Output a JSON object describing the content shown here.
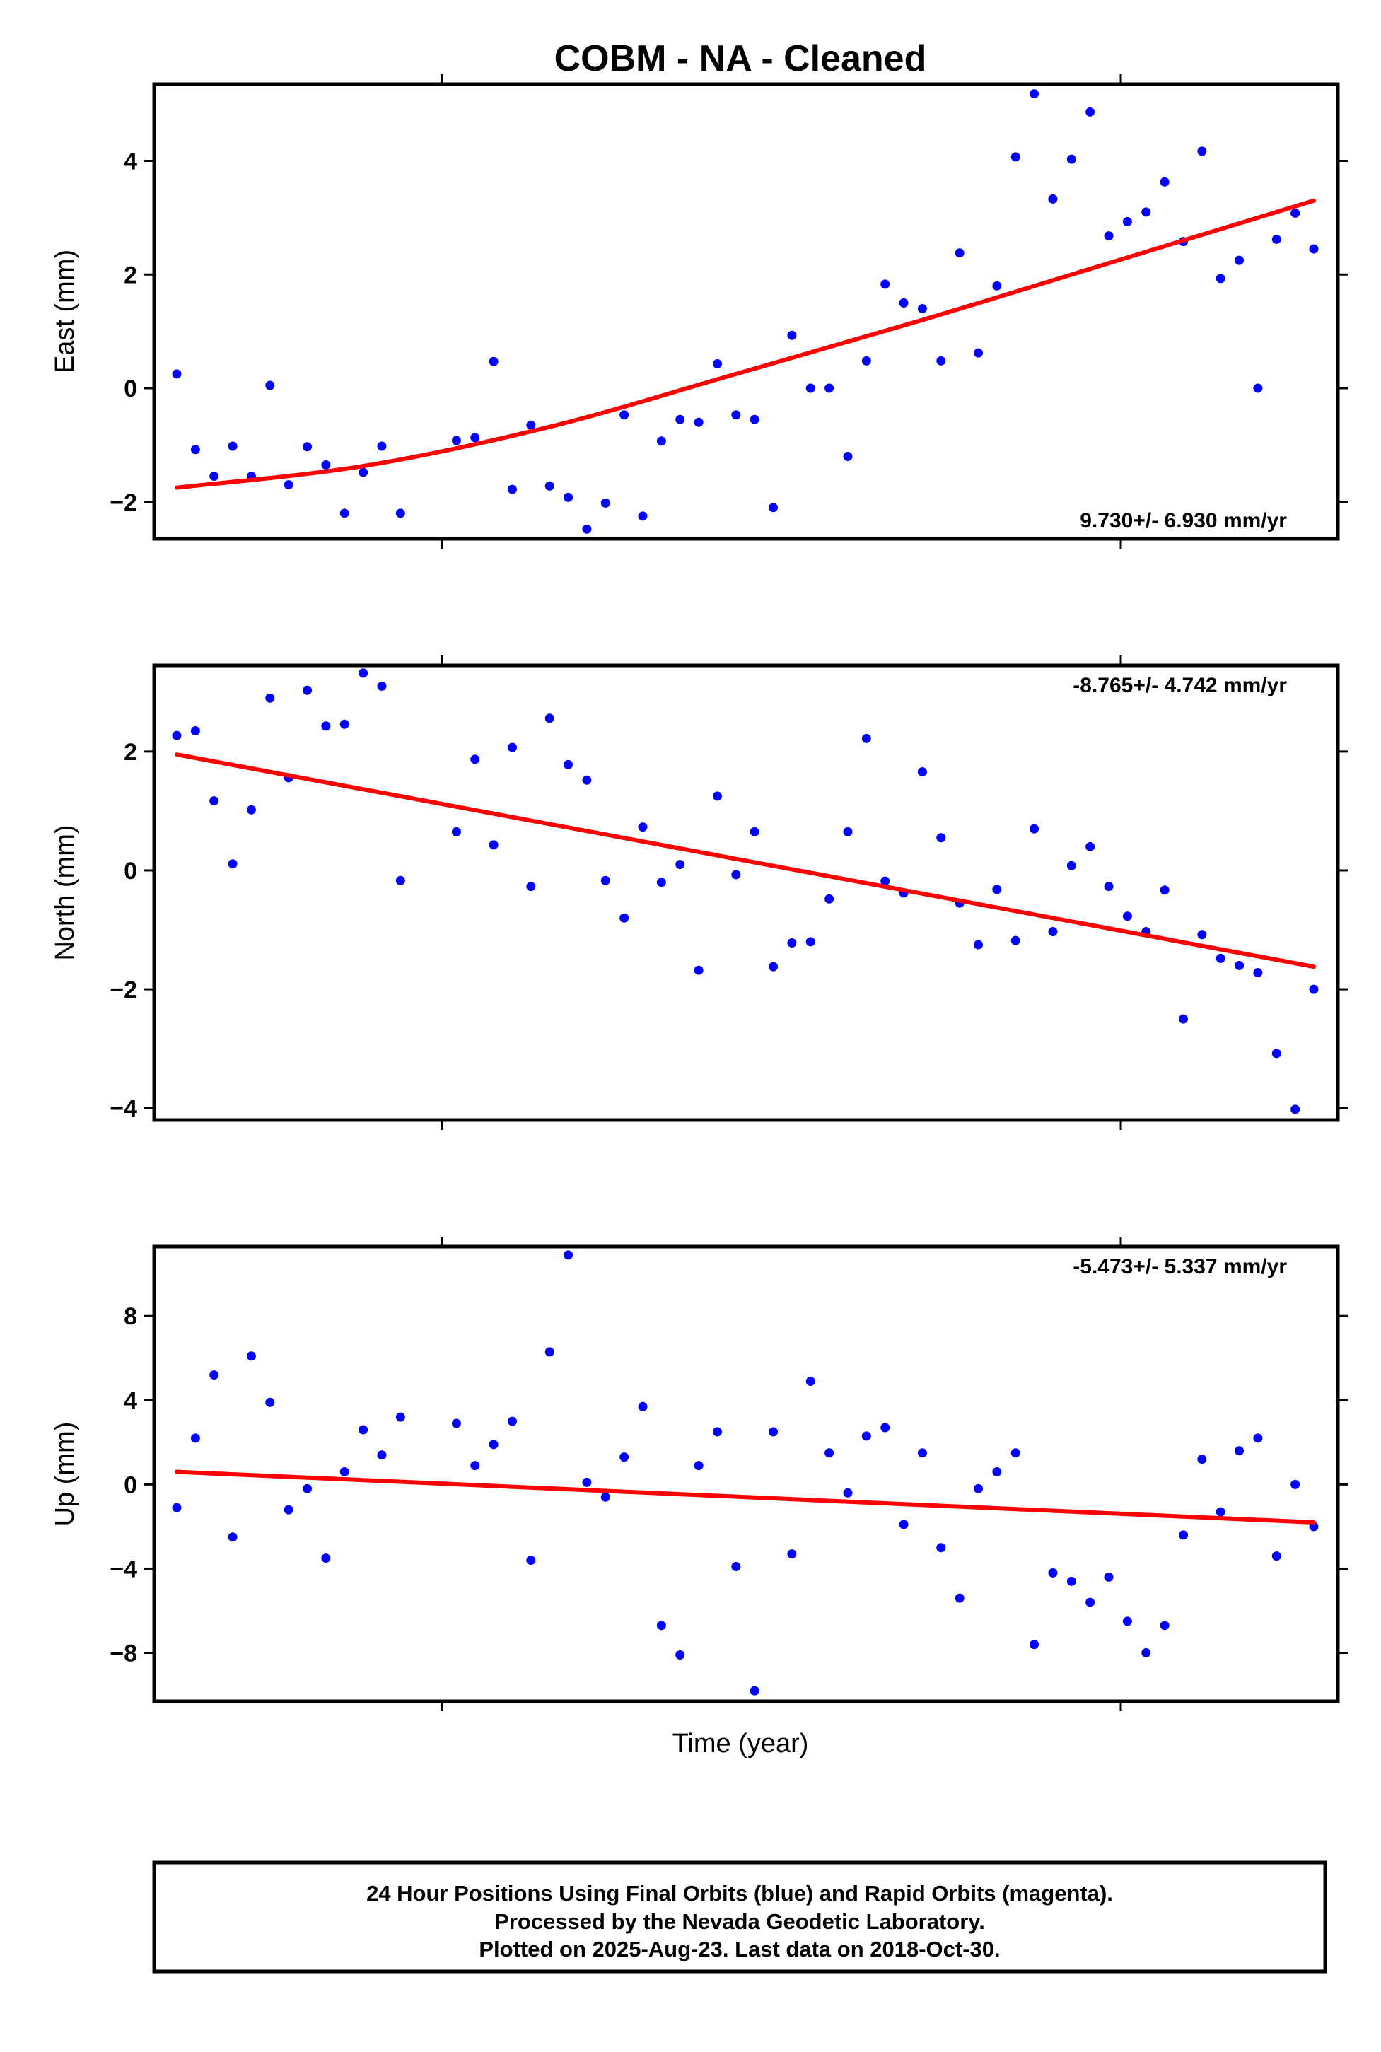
{
  "title": "COBM  - NA - Cleaned",
  "xlabel": "Time (year)",
  "footer": {
    "line1": "24 Hour Positions Using Final Orbits (blue) and Rapid Orbits (magenta).",
    "line2": "Processed by the Nevada Geodetic Laboratory.",
    "line3": "Plotted on 2025-Aug-23. Last data on 2018-Oct-30."
  },
  "colors": {
    "points": "#0000ff",
    "trend": "#ff0000",
    "frame": "#000000"
  },
  "chart_data": [
    {
      "type": "scatter",
      "name": "east",
      "ylabel": "East (mm)",
      "rate_text": "9.730+/- 6.930 mm/yr",
      "rate_position": "bottom-right",
      "ylim": [
        -2.65,
        5.35
      ],
      "yticks": [
        -2,
        0,
        2,
        4
      ],
      "ytick_labels": [
        "−2",
        "0",
        "2",
        "4"
      ],
      "xlim": [
        0,
        62
      ],
      "points": [
        [
          0.5,
          0.25
        ],
        [
          1.5,
          -1.08
        ],
        [
          2.5,
          -1.55
        ],
        [
          3.5,
          -1.02
        ],
        [
          4.5,
          -1.55
        ],
        [
          5.5,
          0.05
        ],
        [
          6.5,
          -1.7
        ],
        [
          7.5,
          -1.03
        ],
        [
          8.5,
          -1.35
        ],
        [
          9.5,
          -2.2
        ],
        [
          10.5,
          -1.48
        ],
        [
          11.5,
          -1.02
        ],
        [
          12.5,
          -2.2
        ],
        [
          15.5,
          -0.92
        ],
        [
          16.5,
          -0.87
        ],
        [
          17.5,
          0.47
        ],
        [
          18.5,
          -1.78
        ],
        [
          19.5,
          -0.65
        ],
        [
          20.5,
          -1.72
        ],
        [
          21.5,
          -1.92
        ],
        [
          22.5,
          -2.48
        ],
        [
          23.5,
          -2.02
        ],
        [
          24.5,
          -0.47
        ],
        [
          25.5,
          -2.25
        ],
        [
          26.5,
          -0.93
        ],
        [
          27.5,
          -0.55
        ],
        [
          28.5,
          -0.6
        ],
        [
          29.5,
          0.43
        ],
        [
          30.5,
          -0.47
        ],
        [
          31.5,
          -0.55
        ],
        [
          32.5,
          -2.1
        ],
        [
          33.5,
          0.93
        ],
        [
          34.5,
          0.0
        ],
        [
          35.5,
          0.0
        ],
        [
          36.5,
          -1.2
        ],
        [
          37.5,
          0.48
        ],
        [
          38.5,
          1.83
        ],
        [
          39.5,
          1.5
        ],
        [
          40.5,
          1.4
        ],
        [
          41.5,
          0.48
        ],
        [
          42.5,
          2.38
        ],
        [
          43.5,
          0.62
        ],
        [
          44.5,
          1.8
        ],
        [
          45.5,
          4.07
        ],
        [
          46.5,
          5.18
        ],
        [
          47.5,
          3.33
        ],
        [
          48.5,
          4.03
        ],
        [
          49.5,
          4.86
        ],
        [
          50.5,
          2.68
        ],
        [
          51.5,
          2.93
        ],
        [
          52.5,
          3.1
        ],
        [
          53.5,
          3.63
        ],
        [
          54.5,
          2.58
        ],
        [
          55.5,
          4.17
        ],
        [
          56.5,
          1.93
        ],
        [
          57.5,
          2.25
        ],
        [
          58.5,
          0.0
        ],
        [
          59.5,
          2.62
        ],
        [
          60.5,
          3.08
        ],
        [
          61.5,
          2.45
        ]
      ],
      "trend": [
        [
          0.5,
          -1.75
        ],
        [
          10.5,
          -1.37
        ],
        [
          20.5,
          -0.68
        ],
        [
          30.5,
          0.25
        ],
        [
          40.5,
          1.2
        ],
        [
          50.5,
          2.2
        ],
        [
          61.5,
          3.3
        ]
      ]
    },
    {
      "type": "scatter",
      "name": "north",
      "ylabel": "North (mm)",
      "rate_text": "-8.765+/- 4.742 mm/yr",
      "rate_position": "top-right",
      "ylim": [
        -4.2,
        3.45
      ],
      "yticks": [
        -4,
        -2,
        0,
        2
      ],
      "ytick_labels": [
        "−4",
        "−2",
        "0",
        "2"
      ],
      "xlim": [
        0,
        62
      ],
      "points": [
        [
          0.5,
          2.27
        ],
        [
          1.5,
          2.35
        ],
        [
          2.5,
          1.17
        ],
        [
          3.5,
          0.11
        ],
        [
          4.5,
          1.02
        ],
        [
          5.5,
          2.9
        ],
        [
          6.5,
          1.56
        ],
        [
          7.5,
          3.03
        ],
        [
          8.5,
          2.43
        ],
        [
          9.5,
          2.46
        ],
        [
          10.5,
          3.32
        ],
        [
          11.5,
          3.1
        ],
        [
          12.5,
          -0.17
        ],
        [
          15.5,
          0.65
        ],
        [
          16.5,
          1.87
        ],
        [
          17.5,
          0.43
        ],
        [
          18.5,
          2.07
        ],
        [
          19.5,
          -0.27
        ],
        [
          20.5,
          2.56
        ],
        [
          21.5,
          1.78
        ],
        [
          22.5,
          1.52
        ],
        [
          23.5,
          -0.17
        ],
        [
          24.5,
          -0.8
        ],
        [
          25.5,
          0.73
        ],
        [
          26.5,
          -0.2
        ],
        [
          27.5,
          0.1
        ],
        [
          28.5,
          -1.68
        ],
        [
          29.5,
          1.25
        ],
        [
          30.5,
          -0.07
        ],
        [
          31.5,
          0.65
        ],
        [
          32.5,
          -1.62
        ],
        [
          33.5,
          -1.22
        ],
        [
          34.5,
          -1.2
        ],
        [
          35.5,
          -0.48
        ],
        [
          36.5,
          0.65
        ],
        [
          37.5,
          2.22
        ],
        [
          38.5,
          -0.18
        ],
        [
          39.5,
          -0.38
        ],
        [
          40.5,
          1.66
        ],
        [
          41.5,
          0.55
        ],
        [
          42.5,
          -0.55
        ],
        [
          43.5,
          -1.25
        ],
        [
          44.5,
          -0.32
        ],
        [
          45.5,
          -1.18
        ],
        [
          46.5,
          0.7
        ],
        [
          47.5,
          -1.03
        ],
        [
          48.5,
          0.08
        ],
        [
          49.5,
          0.4
        ],
        [
          50.5,
          -0.27
        ],
        [
          51.5,
          -0.77
        ],
        [
          52.5,
          -1.03
        ],
        [
          53.5,
          -0.33
        ],
        [
          54.5,
          -2.5
        ],
        [
          55.5,
          -1.08
        ],
        [
          56.5,
          -1.48
        ],
        [
          57.5,
          -1.6
        ],
        [
          58.5,
          -1.72
        ],
        [
          59.5,
          -3.08
        ],
        [
          60.5,
          -4.02
        ],
        [
          61.5,
          -2.0
        ]
      ],
      "trend": [
        [
          0.5,
          1.95
        ],
        [
          61.5,
          -1.62
        ]
      ]
    },
    {
      "type": "scatter",
      "name": "up",
      "ylabel": "Up (mm)",
      "rate_text": "-5.473+/- 5.337 mm/yr",
      "rate_position": "top-right",
      "ylim": [
        -10.3,
        11.3
      ],
      "yticks": [
        -8,
        -4,
        0,
        4,
        8
      ],
      "ytick_labels": [
        "−8",
        "−4",
        "0",
        "4",
        "8"
      ],
      "xlim": [
        0,
        62
      ],
      "points": [
        [
          0.5,
          -1.1
        ],
        [
          1.5,
          2.2
        ],
        [
          2.5,
          5.2
        ],
        [
          3.5,
          -2.5
        ],
        [
          4.5,
          6.1
        ],
        [
          5.5,
          3.9
        ],
        [
          6.5,
          -1.2
        ],
        [
          7.5,
          -0.2
        ],
        [
          8.5,
          -3.5
        ],
        [
          9.5,
          0.6
        ],
        [
          10.5,
          2.6
        ],
        [
          11.5,
          1.4
        ],
        [
          12.5,
          3.2
        ],
        [
          15.5,
          2.9
        ],
        [
          16.5,
          0.9
        ],
        [
          17.5,
          1.9
        ],
        [
          18.5,
          3.0
        ],
        [
          19.5,
          -3.6
        ],
        [
          20.5,
          6.3
        ],
        [
          21.5,
          10.9
        ],
        [
          22.5,
          0.1
        ],
        [
          23.5,
          -0.6
        ],
        [
          24.5,
          1.3
        ],
        [
          25.5,
          3.7
        ],
        [
          26.5,
          -6.7
        ],
        [
          27.5,
          -8.1
        ],
        [
          28.5,
          0.9
        ],
        [
          29.5,
          2.5
        ],
        [
          30.5,
          -3.9
        ],
        [
          31.5,
          -9.8
        ],
        [
          32.5,
          2.5
        ],
        [
          33.5,
          -3.3
        ],
        [
          34.5,
          4.9
        ],
        [
          35.5,
          1.5
        ],
        [
          36.5,
          -0.4
        ],
        [
          37.5,
          2.3
        ],
        [
          38.5,
          2.7
        ],
        [
          39.5,
          -1.9
        ],
        [
          40.5,
          1.5
        ],
        [
          41.5,
          -3.0
        ],
        [
          42.5,
          -5.4
        ],
        [
          43.5,
          -0.2
        ],
        [
          44.5,
          0.6
        ],
        [
          45.5,
          1.5
        ],
        [
          46.5,
          -7.6
        ],
        [
          47.5,
          -4.2
        ],
        [
          48.5,
          -4.6
        ],
        [
          49.5,
          -5.6
        ],
        [
          50.5,
          -4.4
        ],
        [
          51.5,
          -6.5
        ],
        [
          52.5,
          -8.0
        ],
        [
          53.5,
          -6.7
        ],
        [
          54.5,
          -2.4
        ],
        [
          55.5,
          1.2
        ],
        [
          56.5,
          -1.3
        ],
        [
          57.5,
          1.6
        ],
        [
          58.5,
          2.2
        ],
        [
          59.5,
          -3.4
        ],
        [
          60.5,
          0.0
        ],
        [
          61.5,
          -2.0
        ]
      ],
      "trend": [
        [
          0.5,
          0.6
        ],
        [
          61.5,
          -1.8
        ]
      ]
    }
  ]
}
